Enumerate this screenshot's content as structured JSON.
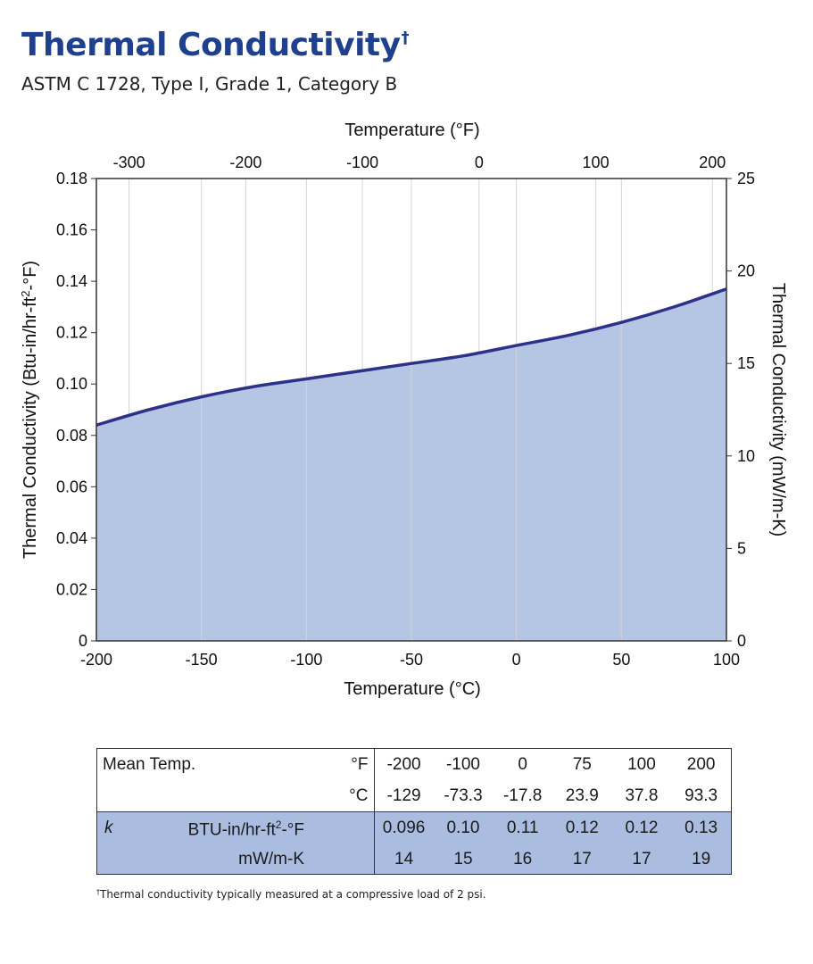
{
  "header": {
    "title": "Thermal Conductivity",
    "title_mark": "†",
    "subtitle": "ASTM C 1728, Type I, Grade 1, Category B"
  },
  "chart_data": {
    "type": "area",
    "title": "Thermal Conductivity",
    "x_bottom": {
      "label": "Temperature (°C)",
      "range": [
        -200,
        100
      ],
      "ticks": [
        -200,
        -150,
        -100,
        -50,
        0,
        50,
        100
      ]
    },
    "x_top": {
      "label": "Temperature (°F)",
      "ticks": [
        -300,
        -200,
        -100,
        0,
        100,
        200
      ]
    },
    "y_left": {
      "label": "Thermal Conductivity (Btu-in/hr-ft²-°F)",
      "range": [
        0,
        0.18
      ],
      "ticks": [
        0,
        0.02,
        0.04,
        0.06,
        0.08,
        0.1,
        0.12,
        0.14,
        0.16,
        0.18
      ],
      "tick_labels": [
        "0",
        "0.02",
        "0.04",
        "0.06",
        "0.08",
        "0.10",
        "0.12",
        "0.14",
        "0.16",
        "0.18"
      ]
    },
    "y_right": {
      "label": "Thermal Conductivity (mW/m-K)",
      "range": [
        0,
        25
      ],
      "ticks": [
        0,
        5,
        10,
        15,
        20,
        25
      ]
    },
    "grid": true,
    "series": [
      {
        "name": "Thermal Conductivity",
        "x": [
          -200,
          -175,
          -150,
          -125,
          -100,
          -75,
          -50,
          -25,
          0,
          25,
          50,
          75,
          100
        ],
        "y": [
          0.084,
          0.09,
          0.095,
          0.099,
          0.102,
          0.105,
          0.108,
          0.111,
          0.115,
          0.119,
          0.124,
          0.13,
          0.137
        ]
      }
    ],
    "colors": {
      "line": "#2e318a",
      "fill": "#b4c6e4",
      "grid": "#d4d4d4",
      "axis": "#333333"
    }
  },
  "table": {
    "row_label": "Mean Temp.",
    "unit_f": "°F",
    "unit_c": "°C",
    "temps_f": [
      "-200",
      "-100",
      "0",
      "75",
      "100",
      "200"
    ],
    "temps_c": [
      "-129",
      "-73.3",
      "-17.8",
      "23.9",
      "37.8",
      "93.3"
    ],
    "k_symbol": "k",
    "unit_btu_pre": "BTU-in/hr-ft",
    "unit_btu_sup": "2",
    "unit_btu_post": "-°F",
    "unit_mw": "mW/m-K",
    "k_btu": [
      "0.096",
      "0.10",
      "0.11",
      "0.12",
      "0.12",
      "0.13"
    ],
    "k_mw": [
      "14",
      "15",
      "16",
      "17",
      "17",
      "19"
    ]
  },
  "footnote": {
    "mark": "†",
    "text": "Thermal conductivity typically measured at a compressive load of 2 psi."
  }
}
